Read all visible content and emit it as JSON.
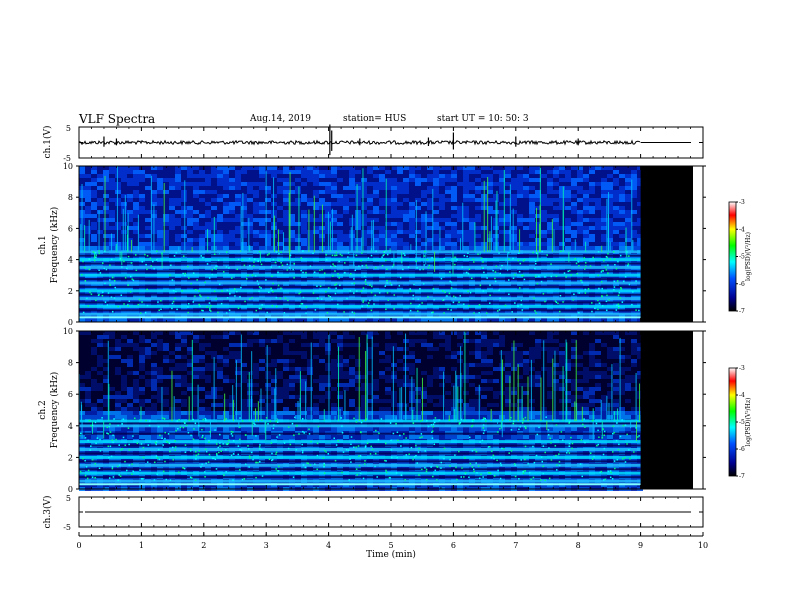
{
  "header": {
    "title": "VLF Spectra",
    "date": "Aug.14, 2019",
    "station": "station= HUS",
    "start": "start  UT =   10: 50: 3"
  },
  "panels": {
    "ch1_waveform": {
      "label": "ch.1(V)",
      "yticks": [
        "5",
        "-5"
      ]
    },
    "ch1_spectrogram": {
      "label_line1": "ch.1",
      "label_line2": "Frequency  (kHz)"
    },
    "ch2_spectrogram": {
      "label_line1": "ch.2",
      "label_line2": "Frequency  (kHz)"
    },
    "ch3_waveform": {
      "label": "ch.3(V)",
      "yticks": [
        "5",
        "-5"
      ]
    }
  },
  "colorbar": {
    "label": "log(PSD)(V²/Hz)",
    "ticks": [
      "-3",
      "-4",
      "-5",
      "-6",
      "-7"
    ],
    "range": [
      -7,
      -3
    ]
  },
  "chart_data": [
    {
      "type": "line",
      "panel": "ch.1(V)",
      "xlabel": "",
      "ylabel": "ch.1(V)",
      "ylim": [
        -5,
        5
      ],
      "xlim": [
        0,
        10
      ],
      "description_values": {
        "baseline": 0,
        "data_end_min": 9.0
      }
    },
    {
      "type": "heatmap",
      "panel": "ch.1",
      "ylabel": "Frequency  (kHz)",
      "xlim": [
        0,
        10
      ],
      "ylim": [
        0,
        10
      ],
      "yticks": [
        "0",
        "2",
        "4",
        "6",
        "8",
        "10"
      ],
      "data_end_min": 9.0,
      "bands_khz": [
        0.5,
        1.0,
        1.5,
        2.0,
        2.5,
        3.0,
        3.5,
        4.0,
        4.5
      ],
      "colorscale": "log(PSD)(V²/Hz)",
      "crange": [
        -7,
        -3
      ]
    },
    {
      "type": "heatmap",
      "panel": "ch.2",
      "ylabel": "Frequency  (kHz)",
      "xlim": [
        0,
        10
      ],
      "ylim": [
        0,
        10
      ],
      "yticks": [
        "0",
        "2",
        "4",
        "6",
        "8",
        "10"
      ],
      "data_end_min": 9.0,
      "bands_khz": [
        0.5,
        1.0,
        1.5,
        2.0,
        2.5,
        3.0,
        4.0,
        4.3
      ],
      "colorscale": "log(PSD)(V²/Hz)",
      "crange": [
        -7,
        -3
      ]
    },
    {
      "type": "line",
      "panel": "ch.3(V)",
      "ylabel": "ch.3(V)",
      "ylim": [
        -5,
        5
      ],
      "xlim": [
        0,
        10
      ],
      "description_values": {
        "baseline": 0
      }
    }
  ],
  "xaxis": {
    "label": "Time  (min)",
    "ticks": [
      "0",
      "1",
      "2",
      "3",
      "4",
      "5",
      "6",
      "7",
      "8",
      "9",
      "10"
    ],
    "range": [
      0,
      10
    ]
  },
  "colors": {
    "background_low": "#000080",
    "mid": "#00ffff",
    "high": "#00ff00",
    "nodata": "#000000"
  }
}
